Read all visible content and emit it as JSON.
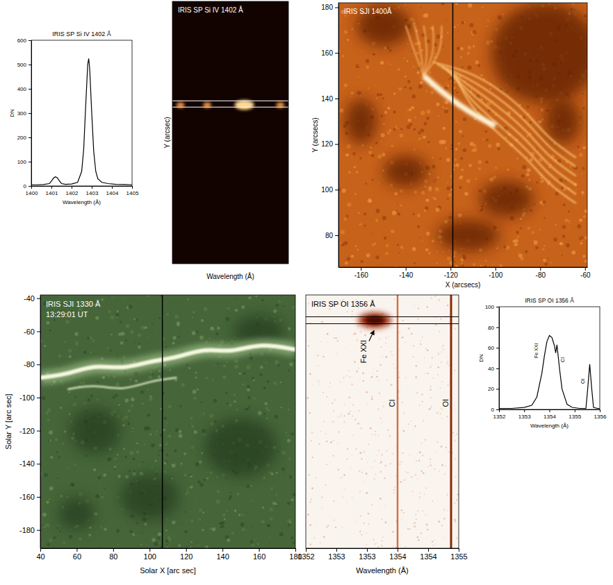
{
  "chart_data": [
    {
      "type": "line",
      "title": "IRIS SP Si IV 1402 Å",
      "xlabel": "Wavelength (Å)",
      "ylabel": "DN",
      "x": [
        1400.0,
        1400.3,
        1400.6,
        1400.9,
        1401.0,
        1401.1,
        1401.2,
        1401.3,
        1401.4,
        1401.5,
        1401.7,
        1402.0,
        1402.3,
        1402.5,
        1402.6,
        1402.7,
        1402.8,
        1402.85,
        1402.9,
        1403.0,
        1403.1,
        1403.2,
        1403.3,
        1403.5,
        1403.8,
        1404.2,
        1404.6,
        1405.0
      ],
      "values": [
        5,
        5,
        6,
        10,
        20,
        32,
        38,
        33,
        20,
        10,
        7,
        8,
        15,
        60,
        150,
        330,
        500,
        525,
        480,
        300,
        140,
        60,
        30,
        15,
        10,
        7,
        6,
        5
      ],
      "color": "#000000",
      "line_style": "solid",
      "xlim": [
        1400,
        1405
      ],
      "xticks": [
        1400,
        1401,
        1402,
        1403,
        1404,
        1405
      ],
      "ylim": [
        0,
        600
      ],
      "yticks": [
        0,
        100,
        200,
        300,
        400,
        500,
        600
      ]
    },
    {
      "type": "image",
      "title": "IRIS SP Si IV 1402 Å",
      "xlabel": "Wavelength (Å)",
      "ylabel": "Y (arcsec)",
      "tick_labels": false
    },
    {
      "type": "image",
      "title": "IRIS SJI 1400Å",
      "xlabel": "X (arcsecs)",
      "ylabel": "Y (arcsecs)",
      "xlim": [
        -170,
        -59
      ],
      "xticks": [
        -160,
        -140,
        -120,
        -100,
        -80,
        -60
      ],
      "ylim": [
        66,
        182
      ],
      "yticks": [
        80,
        100,
        120,
        140,
        160,
        180
      ],
      "slit_x": -119
    },
    {
      "type": "image",
      "title": "IRIS SJI 1330 Å",
      "subtitle": "13:29:01 UT",
      "xlabel": "Solar X [arc sec]",
      "ylabel": "Solar Y [arc sec]",
      "xlim": [
        40,
        180
      ],
      "xticks": [
        40,
        60,
        80,
        100,
        120,
        140,
        160,
        180
      ],
      "ylim": [
        -191,
        -38
      ],
      "yticks": [
        -40,
        -60,
        -80,
        -100,
        -120,
        -140,
        -160,
        -180
      ],
      "slit_x": 107
    },
    {
      "type": "image",
      "title": "IRIS SP OI 1356 Å",
      "xlabel": "Wavelength (Å)",
      "tick_labels": "x",
      "xlim": [
        1352,
        1355
      ],
      "xticks": [
        1352,
        {
          "value": 1352.6,
          "label": "1353"
        },
        {
          "value": 1353.2,
          "label": "1353"
        },
        {
          "value": 1353.8,
          "label": "1354"
        },
        {
          "value": 1354.4,
          "label": "1354"
        },
        1355
      ],
      "annotations": [
        {
          "text": "Fe XXI",
          "x": 1353.35
        },
        {
          "text": "CI",
          "x": 1353.8
        },
        {
          "text": "OI",
          "x": 1354.85
        }
      ]
    },
    {
      "type": "line",
      "title": "IRIS SP OI 1356 Å",
      "xlabel": "Wavelength (Å)",
      "ylabel": "DN",
      "x": [
        1352.0,
        1352.5,
        1353.0,
        1353.3,
        1353.5,
        1353.7,
        1353.8,
        1353.9,
        1354.0,
        1354.1,
        1354.2,
        1354.25,
        1354.3,
        1354.4,
        1354.5,
        1354.7,
        1354.9,
        1355.2,
        1355.45,
        1355.52,
        1355.6,
        1355.68,
        1355.75,
        1355.9,
        1356.0
      ],
      "values": [
        1,
        1,
        2,
        4,
        12,
        35,
        52,
        66,
        72,
        70,
        62,
        55,
        63,
        40,
        20,
        5,
        2,
        1,
        1,
        20,
        44,
        20,
        2,
        1,
        1
      ],
      "color": "#000000",
      "line_style": "solid",
      "xlim": [
        1352,
        1356
      ],
      "xticks": [
        1352,
        1353,
        1354,
        1355,
        1356
      ],
      "ylim": [
        0,
        100
      ],
      "yticks": [
        0,
        20,
        40,
        60,
        80,
        100
      ],
      "annotations": [
        {
          "text": "Fe XXI",
          "x": 1353.55,
          "y": 50
        },
        {
          "text": "CI",
          "x": 1354.6,
          "y": 46
        },
        {
          "text": "OI",
          "x": 1355.4,
          "y": 25
        }
      ]
    }
  ]
}
